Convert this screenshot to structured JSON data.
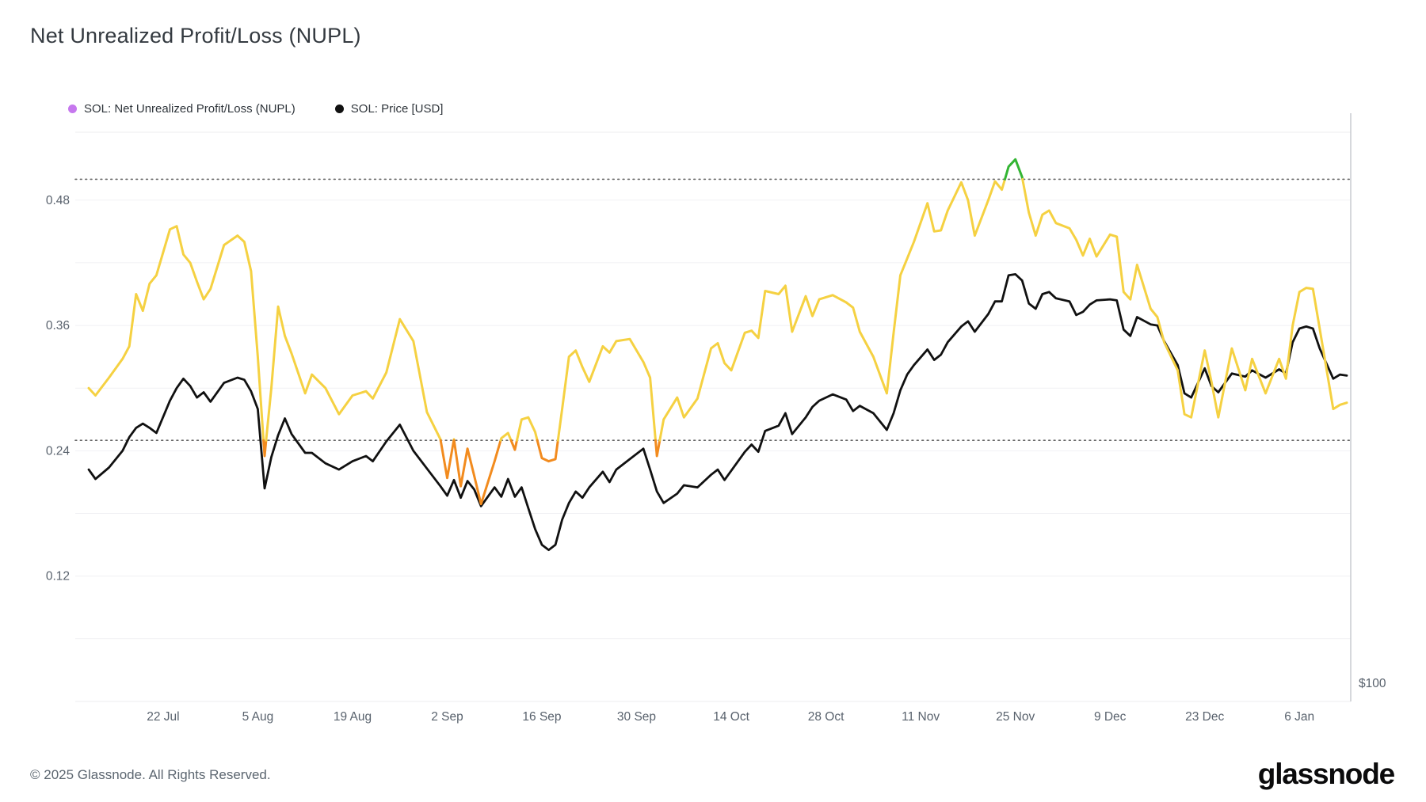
{
  "page": {
    "title": "Net Unrealized Profit/Loss (NUPL)"
  },
  "legend": {
    "items": [
      {
        "label": "SOL: Net Unrealized Profit/Loss (NUPL)",
        "dot_color": "#c678ee"
      },
      {
        "label": "SOL: Price [USD]",
        "dot_color": "#111111"
      }
    ]
  },
  "footer": {
    "copyright": "© 2025 Glassnode. All Rights Reserved.",
    "brand": "glassnode"
  },
  "chart_data": {
    "type": "line",
    "title": "Net Unrealized Profit/Loss (NUPL)",
    "x_tick_labels": [
      "22 Jul",
      "5 Aug",
      "19 Aug",
      "2 Sep",
      "16 Sep",
      "30 Sep",
      "14 Oct",
      "28 Oct",
      "11 Nov",
      "25 Nov",
      "9 Dec",
      "23 Dec",
      "6 Jan"
    ],
    "x_tick_days": [
      11,
      25,
      39,
      53,
      67,
      81,
      95,
      109,
      123,
      137,
      151,
      165,
      179
    ],
    "left_axis": {
      "tick_labels": [
        "0.48",
        "0.36",
        "0.24",
        "0.12"
      ],
      "tick_values": [
        0.48,
        0.36,
        0.24,
        0.12
      ],
      "range": [
        0,
        0.545
      ],
      "minor_grid_step": 0.06,
      "grid_color": "#f1f1f4"
    },
    "right_axis": {
      "visible_label": "$100"
    },
    "thresholds": {
      "upper": 0.5,
      "lower": 0.25,
      "line_color": "#666666"
    },
    "nupl_band_colors": {
      "above_upper": "#33b533",
      "middle": "#f5d142",
      "below_lower": "#f28b1e"
    },
    "series_meta": [
      {
        "name": "SOL: Net Unrealized Profit/Loss (NUPL)",
        "value_column": "nupl",
        "style": "colored-by-band"
      },
      {
        "name": "SOL: Price [USD]",
        "value_column": "price_pos",
        "color": "#111111",
        "note": "price curve plotted against right price axis; only the $100 label is visible, values below are positions read on the left 0-0.545 scale"
      }
    ],
    "columns": [
      "day_index",
      "date",
      "nupl",
      "price_pos"
    ],
    "points": [
      [
        0,
        "Jul 11",
        0.3,
        0.222
      ],
      [
        1,
        "Jul 12",
        0.293,
        0.213
      ],
      [
        3,
        "Jul 14",
        0.31,
        0.224
      ],
      [
        5,
        "Jul 16",
        0.328,
        0.24
      ],
      [
        6,
        "Jul 17",
        0.34,
        0.253
      ],
      [
        7,
        "Jul 18",
        0.39,
        0.262
      ],
      [
        8,
        "Jul 19",
        0.374,
        0.266
      ],
      [
        9,
        "Jul 20",
        0.4,
        0.262
      ],
      [
        10,
        "Jul 21",
        0.408,
        0.257
      ],
      [
        12,
        "Jul 23",
        0.452,
        0.288
      ],
      [
        13,
        "Jul 24",
        0.455,
        0.3
      ],
      [
        14,
        "Jul 25",
        0.428,
        0.309
      ],
      [
        15,
        "Jul 26",
        0.42,
        0.302
      ],
      [
        16,
        "Jul 27",
        0.402,
        0.291
      ],
      [
        17,
        "Jul 28",
        0.385,
        0.296
      ],
      [
        18,
        "Jul 29",
        0.395,
        0.287
      ],
      [
        20,
        "Jul 31",
        0.437,
        0.305
      ],
      [
        22,
        "Aug 2",
        0.446,
        0.31
      ],
      [
        23,
        "Aug 3",
        0.44,
        0.308
      ],
      [
        24,
        "Aug 4",
        0.412,
        0.297
      ],
      [
        25,
        "Aug 5",
        0.33,
        0.28
      ],
      [
        26,
        "Aug 6",
        0.235,
        0.204
      ],
      [
        27,
        "Aug 7",
        0.3,
        0.234
      ],
      [
        28,
        "Aug 8",
        0.378,
        0.255
      ],
      [
        29,
        "Aug 9",
        0.35,
        0.271
      ],
      [
        30,
        "Aug 10",
        0.333,
        0.256
      ],
      [
        32,
        "Aug 12",
        0.295,
        0.238
      ],
      [
        33,
        "Aug 13",
        0.313,
        0.238
      ],
      [
        35,
        "Aug 15",
        0.3,
        0.228
      ],
      [
        37,
        "Aug 17",
        0.275,
        0.222
      ],
      [
        39,
        "Aug 19",
        0.293,
        0.23
      ],
      [
        41,
        "Aug 21",
        0.297,
        0.235
      ],
      [
        42,
        "Aug 22",
        0.29,
        0.23
      ],
      [
        44,
        "Aug 24",
        0.315,
        0.249
      ],
      [
        46,
        "Aug 26",
        0.366,
        0.265
      ],
      [
        48,
        "Aug 28",
        0.345,
        0.24
      ],
      [
        50,
        "Aug 30",
        0.277,
        0.223
      ],
      [
        52,
        "Sep 1",
        0.251,
        0.206
      ],
      [
        53,
        "Sep 2",
        0.214,
        0.197
      ],
      [
        54,
        "Sep 3",
        0.251,
        0.212
      ],
      [
        55,
        "Sep 4",
        0.206,
        0.195
      ],
      [
        56,
        "Sep 5",
        0.242,
        0.211
      ],
      [
        57,
        "Sep 6",
        0.216,
        0.203
      ],
      [
        58,
        "Sep 7",
        0.189,
        0.187
      ],
      [
        60,
        "Sep 9",
        0.23,
        0.205
      ],
      [
        61,
        "Sep 10",
        0.252,
        0.196
      ],
      [
        62,
        "Sep 11",
        0.257,
        0.213
      ],
      [
        63,
        "Sep 12",
        0.241,
        0.196
      ],
      [
        64,
        "Sep 13",
        0.27,
        0.205
      ],
      [
        65,
        "Sep 14",
        0.272,
        0.185
      ],
      [
        66,
        "Sep 15",
        0.258,
        0.165
      ],
      [
        67,
        "Sep 16",
        0.233,
        0.15
      ],
      [
        68,
        "Sep 17",
        0.23,
        0.145
      ],
      [
        69,
        "Sep 18",
        0.232,
        0.15
      ],
      [
        70,
        "Sep 19",
        0.28,
        0.174
      ],
      [
        71,
        "Sep 20",
        0.33,
        0.19
      ],
      [
        72,
        "Sep 21",
        0.336,
        0.201
      ],
      [
        73,
        "Sep 22",
        0.32,
        0.195
      ],
      [
        74,
        "Sep 23",
        0.306,
        0.205
      ],
      [
        76,
        "Sep 25",
        0.34,
        0.22
      ],
      [
        77,
        "Sep 26",
        0.334,
        0.21
      ],
      [
        78,
        "Sep 27",
        0.345,
        0.222
      ],
      [
        80,
        "Sep 29",
        0.347,
        0.232
      ],
      [
        82,
        "Oct 1",
        0.325,
        0.242
      ],
      [
        83,
        "Oct 2",
        0.31,
        0.222
      ],
      [
        84,
        "Oct 3",
        0.235,
        0.201
      ],
      [
        85,
        "Oct 4",
        0.27,
        0.19
      ],
      [
        87,
        "Oct 6",
        0.291,
        0.199
      ],
      [
        88,
        "Oct 7",
        0.272,
        0.207
      ],
      [
        90,
        "Oct 9",
        0.29,
        0.205
      ],
      [
        92,
        "Oct 11",
        0.338,
        0.217
      ],
      [
        93,
        "Oct 12",
        0.343,
        0.222
      ],
      [
        94,
        "Oct 13",
        0.324,
        0.212
      ],
      [
        95,
        "Oct 14",
        0.317,
        0.221
      ],
      [
        97,
        "Oct 16",
        0.353,
        0.239
      ],
      [
        98,
        "Oct 17",
        0.355,
        0.246
      ],
      [
        99,
        "Oct 18",
        0.348,
        0.239
      ],
      [
        100,
        "Oct 19",
        0.393,
        0.259
      ],
      [
        102,
        "Oct 21",
        0.39,
        0.264
      ],
      [
        103,
        "Oct 22",
        0.398,
        0.276
      ],
      [
        104,
        "Oct 23",
        0.354,
        0.256
      ],
      [
        106,
        "Oct 25",
        0.388,
        0.272
      ],
      [
        107,
        "Oct 26",
        0.369,
        0.282
      ],
      [
        108,
        "Oct 27",
        0.385,
        0.288
      ],
      [
        110,
        "Oct 29",
        0.389,
        0.294
      ],
      [
        112,
        "Oct 31",
        0.382,
        0.289
      ],
      [
        113,
        "Nov 1",
        0.377,
        0.278
      ],
      [
        114,
        "Nov 2",
        0.354,
        0.283
      ],
      [
        116,
        "Nov 4",
        0.33,
        0.276
      ],
      [
        118,
        "Nov 6",
        0.295,
        0.26
      ],
      [
        119,
        "Nov 7",
        0.353,
        0.276
      ],
      [
        120,
        "Nov 8",
        0.408,
        0.298
      ],
      [
        121,
        "Nov 9",
        0.424,
        0.313
      ],
      [
        122,
        "Nov 10",
        0.44,
        0.322
      ],
      [
        124,
        "Nov 12",
        0.477,
        0.337
      ],
      [
        125,
        "Nov 13",
        0.45,
        0.327
      ],
      [
        126,
        "Nov 14",
        0.451,
        0.332
      ],
      [
        127,
        "Nov 15",
        0.47,
        0.344
      ],
      [
        129,
        "Nov 17",
        0.497,
        0.359
      ],
      [
        130,
        "Nov 18",
        0.48,
        0.364
      ],
      [
        131,
        "Nov 19",
        0.446,
        0.354
      ],
      [
        133,
        "Nov 21",
        0.48,
        0.371
      ],
      [
        134,
        "Nov 22",
        0.498,
        0.383
      ],
      [
        135,
        "Nov 23",
        0.49,
        0.383
      ],
      [
        136,
        "Nov 24",
        0.512,
        0.408
      ],
      [
        137,
        "Nov 25",
        0.519,
        0.409
      ],
      [
        138,
        "Nov 26",
        0.502,
        0.403
      ],
      [
        139,
        "Nov 27",
        0.468,
        0.381
      ],
      [
        140,
        "Nov 28",
        0.446,
        0.376
      ],
      [
        141,
        "Nov 29",
        0.466,
        0.39
      ],
      [
        142,
        "Nov 30",
        0.47,
        0.392
      ],
      [
        143,
        "Dec 1",
        0.458,
        0.386
      ],
      [
        145,
        "Dec 3",
        0.453,
        0.383
      ],
      [
        146,
        "Dec 4",
        0.442,
        0.37
      ],
      [
        147,
        "Dec 5",
        0.427,
        0.373
      ],
      [
        148,
        "Dec 6",
        0.443,
        0.38
      ],
      [
        149,
        "Dec 7",
        0.426,
        0.384
      ],
      [
        151,
        "Dec 9",
        0.447,
        0.385
      ],
      [
        152,
        "Dec 10",
        0.445,
        0.384
      ],
      [
        153,
        "Dec 11",
        0.392,
        0.356
      ],
      [
        154,
        "Dec 12",
        0.385,
        0.35
      ],
      [
        155,
        "Dec 13",
        0.418,
        0.368
      ],
      [
        157,
        "Dec 15",
        0.376,
        0.361
      ],
      [
        158,
        "Dec 16",
        0.368,
        0.36
      ],
      [
        159,
        "Dec 17",
        0.344,
        0.345
      ],
      [
        161,
        "Dec 19",
        0.317,
        0.322
      ],
      [
        162,
        "Dec 20",
        0.275,
        0.295
      ],
      [
        163,
        "Dec 21",
        0.272,
        0.291
      ],
      [
        165,
        "Dec 23",
        0.336,
        0.319
      ],
      [
        166,
        "Dec 24",
        0.306,
        0.302
      ],
      [
        167,
        "Dec 25",
        0.272,
        0.296
      ],
      [
        169,
        "Dec 27",
        0.338,
        0.314
      ],
      [
        171,
        "Dec 29",
        0.298,
        0.311
      ],
      [
        172,
        "Dec 30",
        0.328,
        0.317
      ],
      [
        174,
        "Jan 1",
        0.295,
        0.31
      ],
      [
        176,
        "Jan 3",
        0.328,
        0.318
      ],
      [
        177,
        "Jan 4",
        0.309,
        0.314
      ],
      [
        178,
        "Jan 5",
        0.36,
        0.344
      ],
      [
        179,
        "Jan 6",
        0.392,
        0.357
      ],
      [
        180,
        "Jan 7",
        0.396,
        0.359
      ],
      [
        181,
        "Jan 8",
        0.395,
        0.357
      ],
      [
        182,
        "Jan 9",
        0.357,
        0.338
      ],
      [
        184,
        "Jan 11",
        0.28,
        0.309
      ],
      [
        185,
        "Jan 12",
        0.284,
        0.313
      ],
      [
        186,
        "Jan 13",
        0.286,
        0.312
      ]
    ]
  }
}
